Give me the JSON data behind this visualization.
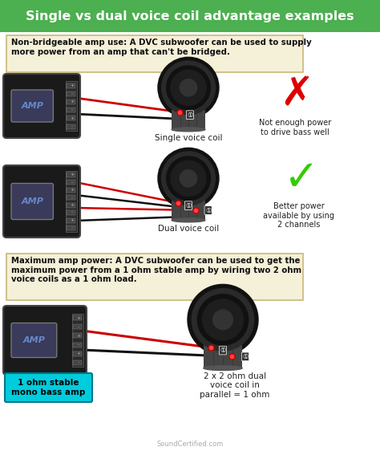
{
  "title": "Single vs dual voice coil advantage examples",
  "title_bg": "#4caf50",
  "title_color": "#ffffff",
  "bg_color": "#ffffff",
  "box1_text": "Non-bridgeable amp use: A DVC subwoofer can be used to supply\nmore power from an amp that can't be bridged.",
  "box1_bg": "#f5f0d8",
  "box1_border": "#c8b878",
  "box2_text": "Maximum amp power: A DVC subwoofer can be used to get the\nmaximum power from a 1 ohm stable amp by wiring two 2 ohm\nvoice coils as a 1 ohm load.",
  "box2_bg": "#f5f0d8",
  "box2_border": "#c8b878",
  "label_single": "Single voice coil",
  "label_dual": "Dual voice coil",
  "label_not_enough": "Not enough power\nto drive bass well",
  "label_better": "Better power\navailable by using\n2 channels",
  "label_1ohm": "1 ohm stable\nmono bass amp",
  "label_2x2ohm": "2 x 2 ohm dual\nvoice coil in\nparallel = 1 ohm",
  "label_amp": "AMP",
  "watermark": "SoundCertified.com",
  "amp_bg": "#1a1a1a",
  "amp_label_color": "#6688cc",
  "wire_red": "#cc0000",
  "wire_black": "#111111",
  "cross_color": "#dd0000",
  "check_color": "#33cc00",
  "cyan_bg": "#00ccdd",
  "cyan_text": "#000000",
  "term_color": "#555555",
  "speaker_dark": "#1a1a1a",
  "speaker_mid": "#333333",
  "speaker_vc": "#555555"
}
